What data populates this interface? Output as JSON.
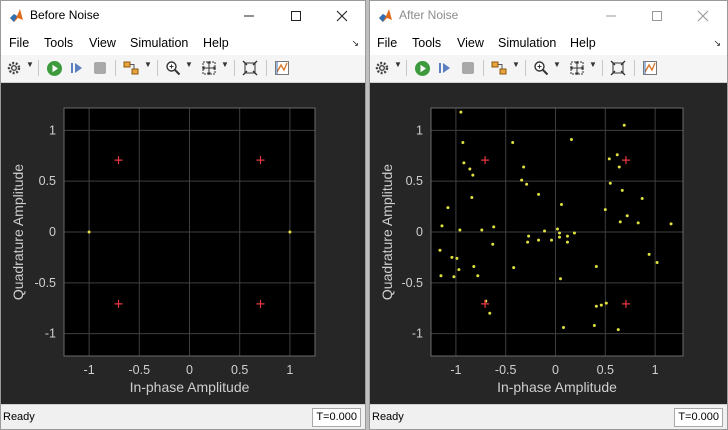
{
  "windows": [
    {
      "id": "left",
      "title": "Before Noise",
      "menu": [
        "File",
        "Tools",
        "View",
        "Simulation",
        "Help"
      ],
      "status": "Ready",
      "time": "T=0.000",
      "chart": {
        "type": "scatter",
        "xlabel": "In-phase Amplitude",
        "ylabel": "Quadrature Amplitude",
        "xlim": [
          -1.25,
          1.25
        ],
        "ylim": [
          -1.22,
          1.22
        ],
        "xticks": [
          -1,
          -0.5,
          0,
          0.5,
          1
        ],
        "yticks": [
          -1,
          -0.5,
          0,
          0.5,
          1
        ],
        "grid": true,
        "reference_color": "#e8383d",
        "point_color": "#e0e040",
        "reference": [
          [
            -0.707,
            0.707
          ],
          [
            0.707,
            0.707
          ],
          [
            -0.707,
            -0.707
          ],
          [
            0.707,
            -0.707
          ]
        ],
        "points": [
          [
            -1,
            0
          ],
          [
            1,
            0
          ]
        ]
      }
    },
    {
      "id": "right",
      "title": "After Noise",
      "menu": [
        "File",
        "Tools",
        "View",
        "Simulation",
        "Help"
      ],
      "status": "Ready",
      "time": "T=0.000",
      "chart": {
        "type": "scatter",
        "xlabel": "In-phase Amplitude",
        "ylabel": "Quadrature Amplitude",
        "xlim": [
          -1.25,
          1.28
        ],
        "ylim": [
          -1.22,
          1.22
        ],
        "xticks": [
          -1,
          -0.5,
          0,
          0.5,
          1
        ],
        "yticks": [
          -1,
          -0.5,
          0,
          0.5,
          1
        ],
        "grid": true,
        "reference_color": "#e8383d",
        "point_color": "#e0e040",
        "reference": [
          [
            -0.707,
            0.707
          ],
          [
            0.707,
            0.707
          ],
          [
            -0.707,
            -0.707
          ],
          [
            0.707,
            -0.707
          ]
        ],
        "points": [
          [
            -0.95,
            1.18
          ],
          [
            -0.93,
            0.88
          ],
          [
            -0.92,
            0.68
          ],
          [
            -0.86,
            0.62
          ],
          [
            -0.83,
            0.56
          ],
          [
            -0.84,
            0.34
          ],
          [
            -1.08,
            0.24
          ],
          [
            -0.96,
            0.02
          ],
          [
            -1.14,
            0.06
          ],
          [
            -1.16,
            -0.18
          ],
          [
            -1.04,
            -0.25
          ],
          [
            -0.99,
            -0.26
          ],
          [
            -1.15,
            -0.43
          ],
          [
            -1.02,
            -0.44
          ],
          [
            -0.97,
            -0.37
          ],
          [
            -0.82,
            -0.34
          ],
          [
            -0.78,
            -0.43
          ],
          [
            -0.74,
            0.02
          ],
          [
            -0.62,
            0.05
          ],
          [
            -0.63,
            -0.12
          ],
          [
            -0.66,
            -0.8
          ],
          [
            -0.7,
            -0.68
          ],
          [
            -0.43,
            0.88
          ],
          [
            -0.32,
            0.64
          ],
          [
            -0.34,
            0.51
          ],
          [
            -0.29,
            0.47
          ],
          [
            -0.17,
            0.37
          ],
          [
            -0.27,
            -0.04
          ],
          [
            -0.28,
            -0.1
          ],
          [
            -0.17,
            -0.08
          ],
          [
            -0.11,
            0.01
          ],
          [
            -0.04,
            -0.08
          ],
          [
            0.02,
            0.03
          ],
          [
            0.04,
            -0.01
          ],
          [
            0.04,
            -0.05
          ],
          [
            0.06,
            0.27
          ],
          [
            0.12,
            -0.04
          ],
          [
            0.12,
            -0.1
          ],
          [
            0.19,
            -0.01
          ],
          [
            -0.42,
            -0.35
          ],
          [
            0.16,
            0.91
          ],
          [
            0.05,
            -0.46
          ],
          [
            0.08,
            -0.94
          ],
          [
            0.41,
            -0.34
          ],
          [
            0.41,
            -0.73
          ],
          [
            0.46,
            -0.72
          ],
          [
            0.51,
            -0.7
          ],
          [
            0.39,
            -0.92
          ],
          [
            0.63,
            -0.96
          ],
          [
            0.5,
            0.22
          ],
          [
            0.55,
            0.48
          ],
          [
            0.54,
            0.72
          ],
          [
            0.62,
            0.76
          ],
          [
            0.64,
            0.64
          ],
          [
            0.69,
            1.05
          ],
          [
            0.67,
            0.41
          ],
          [
            0.72,
            0.16
          ],
          [
            0.65,
            0.1
          ],
          [
            0.83,
            0.09
          ],
          [
            0.87,
            0.33
          ],
          [
            0.94,
            -0.22
          ],
          [
            1.02,
            -0.3
          ],
          [
            1.16,
            0.08
          ]
        ]
      }
    }
  ]
}
